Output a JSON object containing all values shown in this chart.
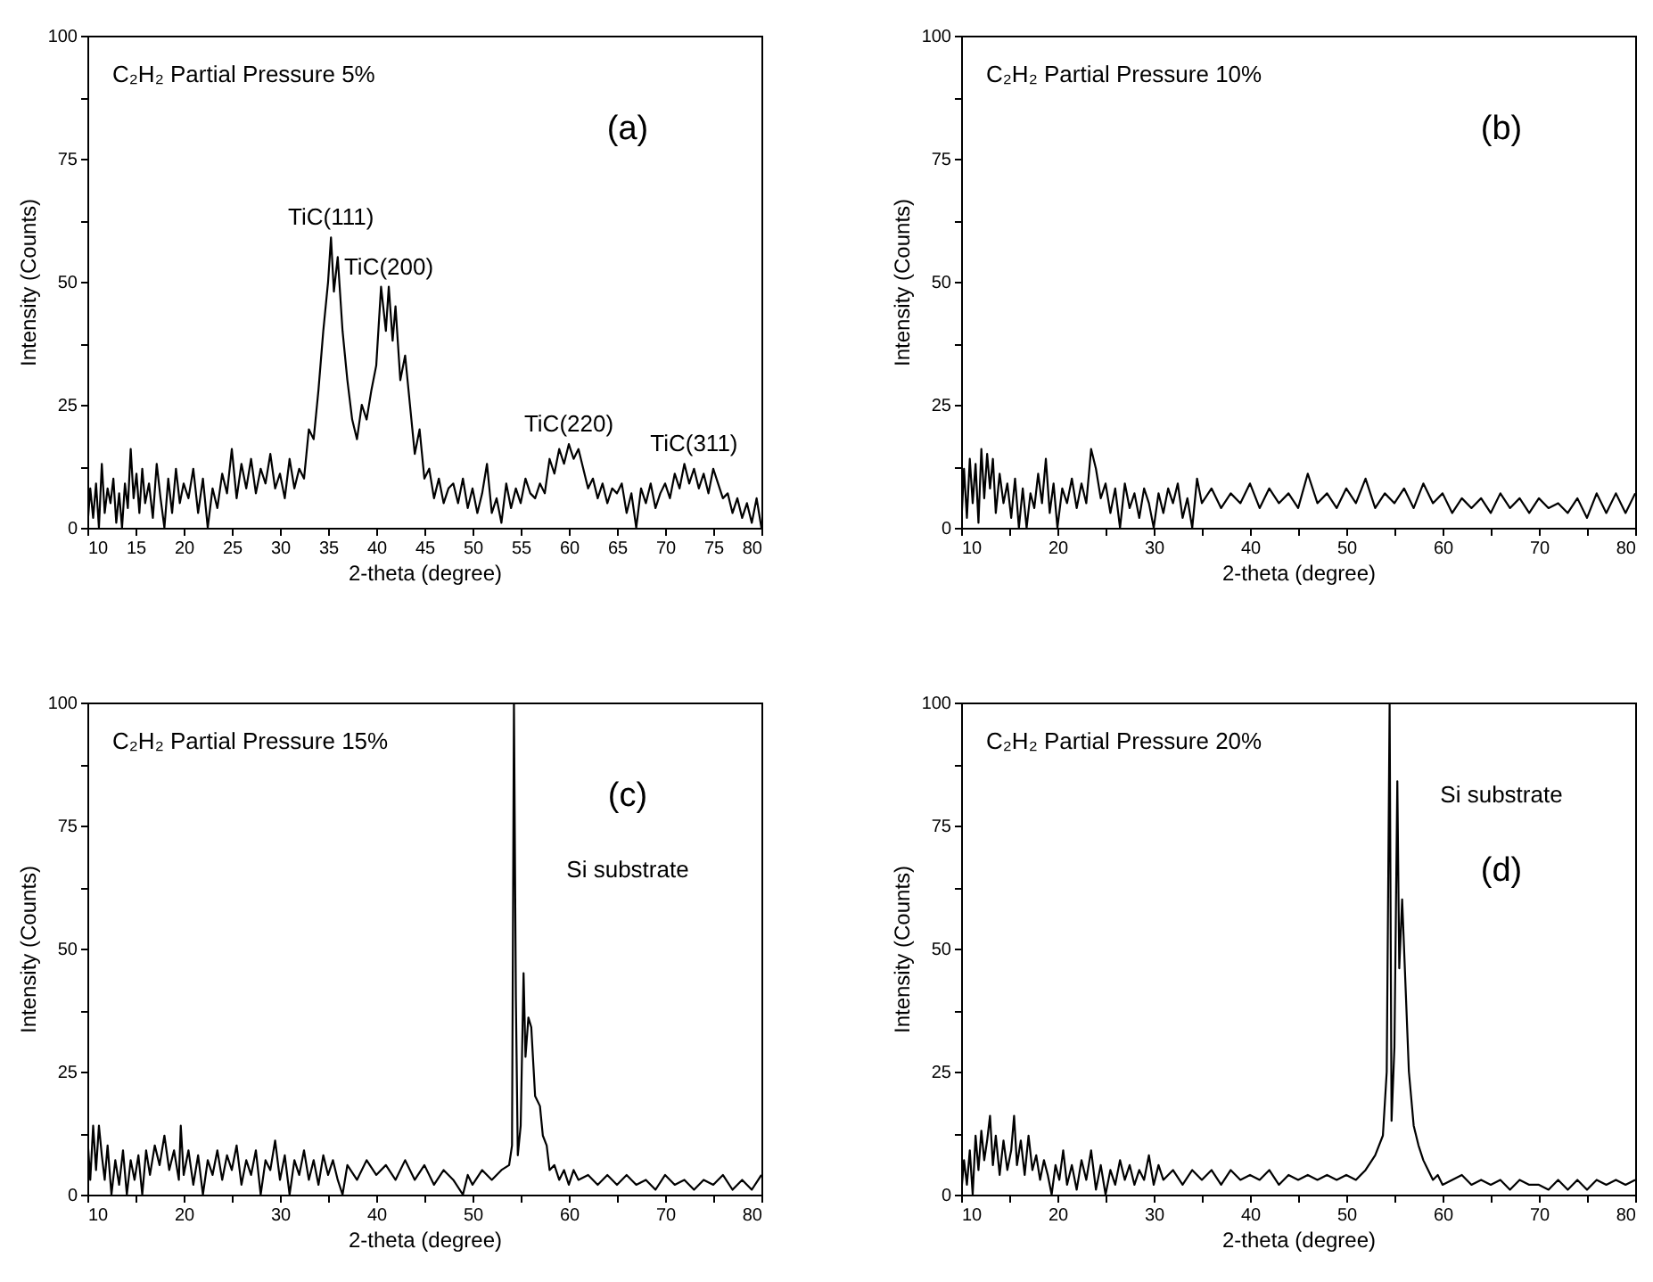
{
  "chart_data": [
    {
      "type": "line",
      "title": "C₂H₂ Partial Pressure 5%",
      "xlabel": "2-theta (degree)",
      "ylabel": "Intensity (Counts)",
      "xlim": [
        10,
        80
      ],
      "ylim": [
        0,
        100
      ],
      "xticks": [
        10,
        15,
        20,
        25,
        30,
        35,
        40,
        45,
        50,
        55,
        60,
        65,
        70,
        75,
        80
      ],
      "yticks": [
        0,
        {
          "value": 12.5,
          "label": null
        },
        25,
        {
          "value": 37.5,
          "label": null
        },
        50,
        {
          "value": 62.5,
          "label": null
        },
        75,
        {
          "value": 87.5,
          "label": null
        },
        100
      ],
      "grid": false,
      "annotations": [
        "(a)",
        {
          "text": "TiC(111)",
          "x": 35.3,
          "y": 59
        },
        {
          "text": "TiC(200)",
          "x": 41.3,
          "y": 49
        },
        {
          "text": "TiC(220)",
          "x": 60,
          "y": 17
        },
        {
          "text": "TiC(311)",
          "x": 73,
          "y": 13
        }
      ],
      "series": [
        {
          "color": "#000000",
          "x": [
            10,
            10.3,
            10.6,
            10.9,
            11.2,
            11.5,
            11.8,
            12.1,
            12.4,
            12.7,
            13,
            13.3,
            13.6,
            13.9,
            14.2,
            14.5,
            14.8,
            15.1,
            15.4,
            15.7,
            16,
            16.4,
            16.8,
            17.2,
            17.6,
            18,
            18.4,
            18.8,
            19.2,
            19.6,
            20,
            20.5,
            21,
            21.5,
            22,
            22.5,
            23,
            23.5,
            24,
            24.5,
            25,
            25.5,
            26,
            26.5,
            27,
            27.5,
            28,
            28.5,
            29,
            29.5,
            30,
            30.5,
            31,
            31.5,
            32,
            32.5,
            33,
            33.5,
            34,
            34.5,
            35,
            35.3,
            35.6,
            36,
            36.5,
            37,
            37.5,
            38,
            38.5,
            39,
            39.5,
            40,
            40.5,
            41,
            41.3,
            41.7,
            42,
            42.5,
            43,
            43.5,
            44,
            44.5,
            45,
            45.5,
            46,
            46.5,
            47,
            47.5,
            48,
            48.5,
            49,
            49.5,
            50,
            50.5,
            51,
            51.5,
            52,
            52.5,
            53,
            53.5,
            54,
            54.5,
            55,
            55.5,
            56,
            56.5,
            57,
            57.5,
            58,
            58.5,
            59,
            59.5,
            60,
            60.5,
            61,
            61.5,
            62,
            62.5,
            63,
            63.5,
            64,
            64.5,
            65,
            65.5,
            66,
            66.5,
            67,
            67.5,
            68,
            68.5,
            69,
            69.5,
            70,
            70.5,
            71,
            71.5,
            72,
            72.5,
            73,
            73.5,
            74,
            74.5,
            75,
            75.5,
            76,
            76.5,
            77,
            77.5,
            78,
            78.5,
            79,
            79.5,
            80
          ],
          "values": [
            0,
            8,
            2,
            9,
            0,
            13,
            3,
            8,
            5,
            10,
            1,
            7,
            0,
            9,
            4,
            16,
            6,
            11,
            3,
            12,
            5,
            9,
            2,
            13,
            6,
            0,
            10,
            3,
            12,
            5,
            9,
            6,
            12,
            3,
            10,
            0,
            8,
            4,
            11,
            7,
            16,
            6,
            13,
            8,
            14,
            7,
            12,
            9,
            15,
            8,
            11,
            6,
            14,
            8,
            12,
            10,
            20,
            18,
            28,
            40,
            50,
            59,
            48,
            55,
            40,
            30,
            22,
            18,
            25,
            22,
            28,
            33,
            49,
            40,
            49,
            38,
            45,
            30,
            35,
            25,
            15,
            20,
            10,
            12,
            6,
            10,
            5,
            8,
            9,
            5,
            10,
            4,
            8,
            3,
            7,
            13,
            3,
            6,
            1,
            9,
            4,
            8,
            5,
            10,
            7,
            6,
            9,
            7,
            14,
            11,
            16,
            13,
            17,
            14,
            16,
            12,
            8,
            10,
            6,
            9,
            5,
            8,
            7,
            9,
            3,
            7,
            0,
            8,
            5,
            9,
            4,
            7,
            9,
            6,
            11,
            8,
            13,
            9,
            12,
            8,
            11,
            7,
            12,
            9,
            6,
            7,
            3,
            6,
            2,
            5,
            1,
            6,
            0
          ]
        }
      ]
    },
    {
      "type": "line",
      "title": "C₂H₂ Partial Pressure 10%",
      "xlabel": "2-theta (degree)",
      "ylabel": "Intensity (Counts)",
      "xlim": [
        10,
        80
      ],
      "ylim": [
        0,
        100
      ],
      "xticks": [
        10,
        {
          "value": 15,
          "label": null
        },
        20,
        {
          "value": 25,
          "label": null
        },
        30,
        {
          "value": 35,
          "label": null
        },
        40,
        {
          "value": 45,
          "label": null
        },
        50,
        {
          "value": 55,
          "label": null
        },
        60,
        {
          "value": 65,
          "label": null
        },
        70,
        {
          "value": 75,
          "label": null
        },
        80
      ],
      "yticks": [
        0,
        {
          "value": 12.5,
          "label": null
        },
        25,
        {
          "value": 37.5,
          "label": null
        },
        50,
        {
          "value": 62.5,
          "label": null
        },
        75,
        {
          "value": 87.5,
          "label": null
        },
        100
      ],
      "grid": false,
      "annotations": [
        "(b)"
      ],
      "series": [
        {
          "color": "#000000",
          "x": [
            10,
            10.3,
            10.6,
            10.9,
            11.2,
            11.5,
            11.8,
            12.1,
            12.4,
            12.7,
            13,
            13.3,
            13.6,
            14,
            14.4,
            14.8,
            15.2,
            15.6,
            16,
            16.4,
            16.8,
            17.2,
            17.6,
            18,
            18.4,
            18.8,
            19.2,
            19.6,
            20,
            20.5,
            21,
            21.5,
            22,
            22.5,
            23,
            23.5,
            24,
            24.5,
            25,
            25.5,
            26,
            26.5,
            27,
            27.5,
            28,
            28.5,
            29,
            29.5,
            30,
            30.5,
            31,
            31.5,
            32,
            32.5,
            33,
            33.5,
            34,
            34.5,
            35,
            36,
            37,
            38,
            39,
            40,
            41,
            42,
            43,
            44,
            45,
            46,
            47,
            48,
            49,
            50,
            51,
            52,
            53,
            54,
            55,
            56,
            57,
            58,
            59,
            60,
            61,
            62,
            63,
            64,
            65,
            66,
            67,
            68,
            69,
            70,
            71,
            72,
            73,
            74,
            75,
            76,
            77,
            78,
            79,
            80
          ],
          "values": [
            0,
            12,
            2,
            14,
            5,
            13,
            1,
            16,
            6,
            15,
            8,
            14,
            3,
            11,
            5,
            9,
            2,
            10,
            0,
            8,
            0,
            7,
            4,
            11,
            5,
            14,
            3,
            9,
            0,
            8,
            5,
            10,
            4,
            9,
            5,
            16,
            12,
            6,
            9,
            3,
            8,
            0,
            9,
            4,
            7,
            2,
            8,
            5,
            0,
            7,
            3,
            8,
            5,
            9,
            2,
            6,
            0,
            10,
            5,
            8,
            4,
            7,
            5,
            9,
            4,
            8,
            5,
            7,
            4,
            11,
            5,
            7,
            4,
            8,
            5,
            10,
            4,
            7,
            5,
            8,
            4,
            9,
            5,
            7,
            3,
            6,
            4,
            6,
            3,
            7,
            4,
            6,
            3,
            6,
            4,
            5,
            3,
            6,
            2,
            7,
            3,
            7,
            3,
            7
          ]
        }
      ]
    },
    {
      "type": "line",
      "title": "C₂H₂ Partial Pressure 15%",
      "xlabel": "2-theta (degree)",
      "ylabel": "Intensity (Counts)",
      "xlim": [
        10,
        80
      ],
      "ylim": [
        0,
        100
      ],
      "xticks": [
        10,
        {
          "value": 15,
          "label": null
        },
        20,
        {
          "value": 25,
          "label": null
        },
        30,
        {
          "value": 35,
          "label": null
        },
        40,
        {
          "value": 45,
          "label": null
        },
        50,
        {
          "value": 55,
          "label": null
        },
        60,
        {
          "value": 65,
          "label": null
        },
        70,
        {
          "value": 75,
          "label": null
        },
        80
      ],
      "yticks": [
        0,
        {
          "value": 12.5,
          "label": null
        },
        25,
        {
          "value": 37.5,
          "label": null
        },
        50,
        {
          "value": 62.5,
          "label": null
        },
        75,
        {
          "value": 87.5,
          "label": null
        },
        100
      ],
      "grid": false,
      "annotations": [
        "(c)",
        "Si substrate"
      ],
      "series": [
        {
          "color": "#000000",
          "x": [
            10,
            10.3,
            10.6,
            10.9,
            11.2,
            11.5,
            11.8,
            12.1,
            12.5,
            12.9,
            13.3,
            13.7,
            14.1,
            14.5,
            14.9,
            15.3,
            15.7,
            16.1,
            16.5,
            17,
            17.5,
            18,
            18.5,
            19,
            19.5,
            19.7,
            20,
            20.5,
            21,
            21.5,
            22,
            22.5,
            23,
            23.5,
            24,
            24.5,
            25,
            25.5,
            26,
            26.5,
            27,
            27.5,
            28,
            28.5,
            29,
            29.5,
            30,
            30.5,
            31,
            31.5,
            32,
            32.5,
            33,
            33.5,
            34,
            34.5,
            35,
            35.5,
            36,
            36.5,
            37,
            38,
            39,
            40,
            41,
            42,
            43,
            44,
            45,
            46,
            47,
            48,
            49,
            49.5,
            50,
            51,
            52,
            53,
            53.8,
            54.1,
            54.3,
            54.5,
            54.7,
            55,
            55.3,
            55.5,
            55.8,
            56.1,
            56.5,
            57,
            57.3,
            57.7,
            58,
            58.5,
            59,
            59.5,
            60,
            60.5,
            61,
            62,
            63,
            64,
            65,
            66,
            67,
            68,
            69,
            70,
            71,
            72,
            73,
            74,
            75,
            76,
            77,
            78,
            79,
            80
          ],
          "values": [
            12,
            3,
            14,
            5,
            14,
            8,
            3,
            10,
            0,
            7,
            2,
            9,
            0,
            7,
            3,
            8,
            0,
            9,
            4,
            10,
            6,
            12,
            5,
            9,
            3,
            14,
            4,
            9,
            2,
            8,
            0,
            7,
            4,
            9,
            3,
            8,
            5,
            10,
            2,
            7,
            4,
            9,
            0,
            7,
            5,
            11,
            3,
            8,
            0,
            7,
            4,
            9,
            3,
            7,
            2,
            8,
            4,
            7,
            3,
            0,
            6,
            3,
            7,
            4,
            6,
            3,
            7,
            3,
            6,
            2,
            5,
            3,
            0,
            4,
            2,
            5,
            3,
            5,
            6,
            10,
            100,
            40,
            8,
            14,
            45,
            28,
            36,
            34,
            20,
            18,
            12,
            10,
            5,
            6,
            3,
            5,
            2,
            5,
            3,
            4,
            2,
            4,
            2,
            4,
            2,
            3,
            1,
            4,
            2,
            3,
            1,
            3,
            2,
            4,
            1,
            3,
            1,
            4
          ]
        }
      ]
    },
    {
      "type": "line",
      "title": "C₂H₂ Partial Pressure 20%",
      "xlabel": "2-theta (degree)",
      "ylabel": "Intensity (Counts)",
      "xlim": [
        10,
        80
      ],
      "ylim": [
        0,
        100
      ],
      "xticks": [
        10,
        {
          "value": 15,
          "label": null
        },
        20,
        {
          "value": 25,
          "label": null
        },
        30,
        {
          "value": 35,
          "label": null
        },
        40,
        {
          "value": 45,
          "label": null
        },
        50,
        {
          "value": 55,
          "label": null
        },
        60,
        {
          "value": 65,
          "label": null
        },
        70,
        {
          "value": 75,
          "label": null
        },
        80
      ],
      "yticks": [
        0,
        {
          "value": 12.5,
          "label": null
        },
        25,
        {
          "value": 37.5,
          "label": null
        },
        50,
        {
          "value": 62.5,
          "label": null
        },
        75,
        {
          "value": 87.5,
          "label": null
        },
        100
      ],
      "grid": false,
      "annotations": [
        "Si substrate",
        "(d)"
      ],
      "series": [
        {
          "color": "#000000",
          "x": [
            10,
            10.3,
            10.6,
            10.9,
            11.2,
            11.5,
            11.8,
            12.1,
            12.4,
            12.7,
            13,
            13.3,
            13.6,
            14,
            14.4,
            14.8,
            15.2,
            15.5,
            15.8,
            16.2,
            16.6,
            17,
            17.4,
            17.8,
            18.2,
            18.6,
            19,
            19.4,
            19.8,
            20.2,
            20.6,
            21,
            21.5,
            22,
            22.5,
            23,
            23.5,
            24,
            24.5,
            25,
            25.5,
            26,
            26.5,
            27,
            27.5,
            28,
            28.5,
            29,
            29.5,
            30,
            30.5,
            31,
            32,
            33,
            34,
            35,
            36,
            37,
            38,
            39,
            40,
            41,
            42,
            43,
            44,
            45,
            46,
            47,
            48,
            49,
            50,
            51,
            52,
            53,
            53.8,
            54.2,
            54.5,
            54.7,
            55,
            55.3,
            55.5,
            55.8,
            56.1,
            56.5,
            57,
            57.5,
            58,
            58.5,
            59,
            59.5,
            60,
            61,
            62,
            63,
            64,
            65,
            66,
            67,
            68,
            69,
            70,
            71,
            72,
            73,
            74,
            75,
            76,
            77,
            78,
            79,
            80
          ],
          "values": [
            0,
            7,
            2,
            9,
            0,
            12,
            5,
            13,
            7,
            11,
            16,
            6,
            12,
            4,
            11,
            5,
            9,
            16,
            6,
            11,
            4,
            12,
            5,
            8,
            3,
            7,
            4,
            0,
            6,
            3,
            9,
            2,
            6,
            1,
            7,
            3,
            9,
            1,
            6,
            0,
            5,
            2,
            7,
            3,
            6,
            2,
            5,
            3,
            8,
            2,
            6,
            3,
            5,
            2,
            5,
            3,
            5,
            2,
            5,
            3,
            4,
            3,
            5,
            2,
            4,
            3,
            4,
            3,
            4,
            3,
            4,
            3,
            5,
            8,
            12,
            25,
            100,
            15,
            30,
            84,
            46,
            60,
            45,
            25,
            14,
            10,
            7,
            5,
            3,
            4,
            2,
            3,
            4,
            2,
            3,
            2,
            3,
            1,
            3,
            2,
            2,
            1,
            3,
            1,
            3,
            1,
            3,
            2,
            3,
            2,
            3
          ]
        }
      ]
    }
  ]
}
